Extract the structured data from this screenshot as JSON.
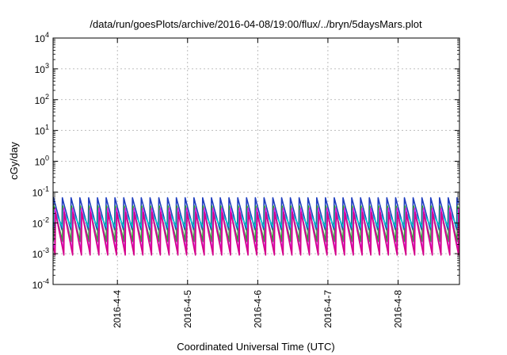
{
  "chart_data": {
    "type": "line",
    "title": "/data/run/goesPlots/archive/2016-04-08/19:00/flux/../bryn/5daysMars.plot",
    "xlabel": "Coordinated Universal Time (UTC)",
    "ylabel": "cGy/day",
    "y_scale": "log",
    "ylim": [
      0.0001,
      10000
    ],
    "xlim": [
      "2016-04-03 02:00",
      "2016-04-08 21:00"
    ],
    "grid": true,
    "y_ticks": [
      {
        "base": "10",
        "exp": "-4",
        "value": 0.0001
      },
      {
        "base": "10",
        "exp": "-3",
        "value": 0.001
      },
      {
        "base": "10",
        "exp": "-2",
        "value": 0.01
      },
      {
        "base": "10",
        "exp": "-1",
        "value": 0.1
      },
      {
        "base": "10",
        "exp": "0",
        "value": 1
      },
      {
        "base": "10",
        "exp": "1",
        "value": 10
      },
      {
        "base": "10",
        "exp": "2",
        "value": 100
      },
      {
        "base": "10",
        "exp": "3",
        "value": 1000
      },
      {
        "base": "10",
        "exp": "4",
        "value": 10000
      }
    ],
    "x_ticks": [
      {
        "label": "2016-4-4",
        "value": "2016-04-04 00:00"
      },
      {
        "label": "2016-4-5",
        "value": "2016-04-05 00:00"
      },
      {
        "label": "2016-4-6",
        "value": "2016-04-06 00:00"
      },
      {
        "label": "2016-4-7",
        "value": "2016-04-07 00:00"
      },
      {
        "label": "2016-4-8",
        "value": "2016-04-08 00:00"
      }
    ],
    "series": [
      {
        "color": "#d62728",
        "peak": 0.07,
        "trough": 0.0045
      },
      {
        "color": "#1f3fbf",
        "peak": 0.065,
        "trough": 0.006
      },
      {
        "color": "#2ca02c",
        "peak": 0.035,
        "trough": 0.0025
      },
      {
        "color": "#00c8d0",
        "peak": 0.025,
        "trough": 0.007
      },
      {
        "color": "#e01fe0",
        "peak": 0.03,
        "trough": 0.0012
      },
      {
        "color": "#d4008a",
        "peak": 0.022,
        "trough": 0.0009
      }
    ],
    "cycles_per_day": 8
  }
}
